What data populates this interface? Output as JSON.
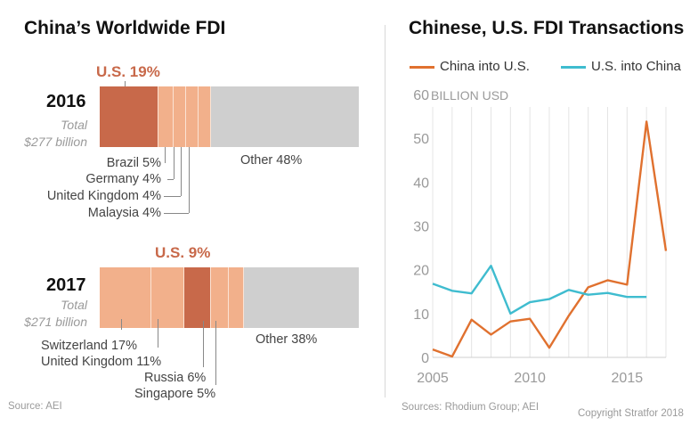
{
  "left": {
    "title": "China’s Worldwide FDI",
    "bars": [
      {
        "year": "2016",
        "total_line1": "Total",
        "total_line2": "$277 billion",
        "us_label": "U.S. 19%",
        "segments": [
          {
            "name": "U.S.",
            "pct": 19,
            "color": "#c8694a"
          },
          {
            "name": "Brazil",
            "pct": 5,
            "color": "#f2b08b"
          },
          {
            "name": "Germany",
            "pct": 4,
            "color": "#f2b08b"
          },
          {
            "name": "United Kingdom",
            "pct": 4,
            "color": "#f2b08b"
          },
          {
            "name": "Malaysia",
            "pct": 4,
            "color": "#f2b08b"
          },
          {
            "name": "Other",
            "pct": 48,
            "color": "#cfcfcf"
          }
        ],
        "labels": {
          "brazil": "Brazil 5%",
          "germany": "Germany 4%",
          "uk": "United Kingdom 4%",
          "malaysia": "Malaysia 4%",
          "other": "Other 48%"
        }
      },
      {
        "year": "2017",
        "total_line1": "Total",
        "total_line2": "$271 billion",
        "us_label": "U.S. 9%",
        "segments": [
          {
            "name": "Switzerland",
            "pct": 17,
            "color": "#f2b08b"
          },
          {
            "name": "United Kingdom",
            "pct": 11,
            "color": "#f2b08b"
          },
          {
            "name": "U.S.",
            "pct": 9,
            "color": "#c8694a"
          },
          {
            "name": "Russia",
            "pct": 6,
            "color": "#f2b08b"
          },
          {
            "name": "Singapore",
            "pct": 5,
            "color": "#f2b08b"
          },
          {
            "name": "Other",
            "pct": 38,
            "color": "#cfcfcf"
          }
        ],
        "labels": {
          "switzerland": "Switzerland 17%",
          "uk": "United Kingdom 11%",
          "russia": "Russia 6%",
          "singapore": "Singapore 5%",
          "other": "Other 38%"
        }
      }
    ],
    "source": "Source: AEI"
  },
  "right": {
    "title": "Chinese, U.S. FDI Transactions",
    "legend": [
      {
        "name": "China into U.S.",
        "color": "#e0712f"
      },
      {
        "name": "U.S. into China",
        "color": "#3fbccf"
      }
    ],
    "source": "Sources: Rhodium Group; AEI"
  },
  "copyright": "Copyright Stratfor 2018",
  "chart_data": [
    {
      "type": "bar",
      "title": "China’s Worldwide FDI",
      "categories": [
        "2016",
        "2017"
      ],
      "totals_label": [
        "$277 billion",
        "$271 billion"
      ],
      "series": [
        {
          "name": "U.S.",
          "values": [
            19,
            9
          ]
        },
        {
          "name": "Brazil",
          "values": [
            5,
            null
          ]
        },
        {
          "name": "Germany",
          "values": [
            4,
            null
          ]
        },
        {
          "name": "United Kingdom",
          "values": [
            4,
            11
          ]
        },
        {
          "name": "Malaysia",
          "values": [
            4,
            null
          ]
        },
        {
          "name": "Switzerland",
          "values": [
            null,
            17
          ]
        },
        {
          "name": "Russia",
          "values": [
            null,
            6
          ]
        },
        {
          "name": "Singapore",
          "values": [
            null,
            5
          ]
        },
        {
          "name": "Other",
          "values": [
            48,
            38
          ]
        }
      ]
    },
    {
      "type": "line",
      "title": "Chinese, U.S. FDI Transactions",
      "ylabel": "BILLION USD",
      "ylim": [
        0,
        60
      ],
      "xlim": [
        2005,
        2017
      ],
      "yticks": [
        0,
        10,
        20,
        30,
        40,
        50,
        60
      ],
      "xticks": [
        2005,
        2010,
        2015
      ],
      "grid": "vertical",
      "legend": "top",
      "x": [
        2005,
        2006,
        2007,
        2008,
        2009,
        2010,
        2011,
        2012,
        2013,
        2014,
        2015,
        2016,
        2017
      ],
      "series": [
        {
          "name": "China into U.S.",
          "color": "#e0712f",
          "values": [
            1.8,
            0.2,
            8.6,
            5.2,
            8.2,
            8.8,
            2.2,
            9.5,
            16.0,
            17.6,
            16.6,
            53.8,
            24.3
          ]
        },
        {
          "name": "U.S. into China",
          "color": "#3fbccf",
          "values": [
            16.8,
            15.2,
            14.6,
            20.9,
            10.0,
            12.6,
            13.3,
            15.4,
            14.3,
            14.7,
            13.8,
            13.8,
            null
          ]
        }
      ]
    }
  ]
}
